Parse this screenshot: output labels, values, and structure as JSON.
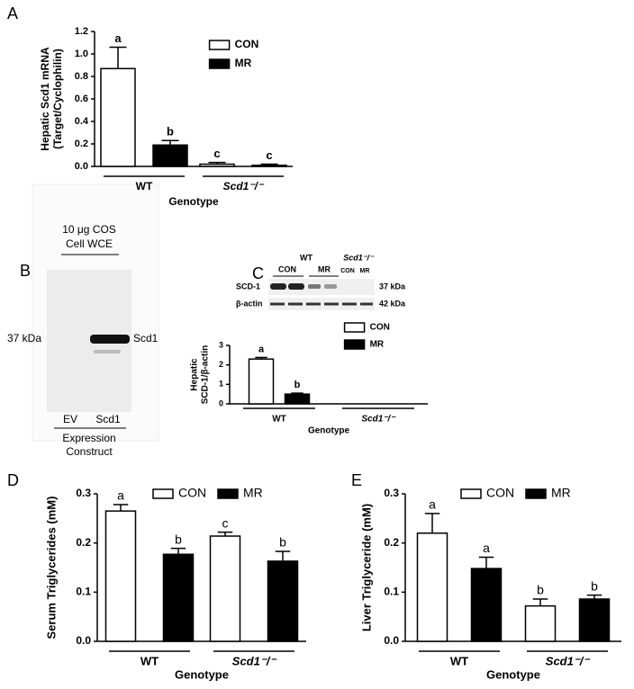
{
  "chart_data": [
    {
      "type": "bar",
      "panel": "A",
      "ylabel": [
        "Hepatic Scd1 mRNA",
        "(Target/Cyclophilin)"
      ],
      "xlabel": "Genotype",
      "categories": [
        "WT",
        "Scd1⁻/⁻"
      ],
      "series": [
        {
          "name": "CON",
          "color": "#ffffff",
          "values": [
            0.87,
            0.02
          ],
          "errors": [
            0.19,
            0.015
          ],
          "letters": [
            "a",
            "c"
          ]
        },
        {
          "name": "MR",
          "color": "#000000",
          "values": [
            0.19,
            0.01
          ],
          "errors": [
            0.04,
            0.01
          ],
          "letters": [
            "b",
            "c"
          ]
        }
      ],
      "ylim": [
        0,
        1.2
      ],
      "yticks": [
        {
          "value": 0,
          "label": "0.0"
        },
        0.2,
        0.4,
        0.6,
        0.8,
        {
          "value": 1,
          "label": "1.0"
        },
        1.2
      ],
      "legend": "upper right"
    },
    {
      "type": "bar",
      "panel": "C",
      "ylabel": [
        "Hepatic",
        "SCD-1/β-actin"
      ],
      "xlabel": "Genotype",
      "categories": [
        "WT",
        "Scd1⁻/⁻"
      ],
      "series": [
        {
          "name": "CON",
          "color": "#ffffff",
          "values": [
            2.3,
            null
          ],
          "errors": [
            0.08,
            null
          ],
          "letters": [
            "a",
            null
          ]
        },
        {
          "name": "MR",
          "color": "#000000",
          "values": [
            0.5,
            null
          ],
          "errors": [
            0.05,
            null
          ],
          "letters": [
            "b",
            null
          ]
        }
      ],
      "ylim": [
        0,
        3
      ],
      "yticks": [
        0,
        1,
        2,
        3
      ],
      "legend": "upper right"
    },
    {
      "type": "bar",
      "panel": "D",
      "ylabel": [
        "Serum Triglycerides (mM)"
      ],
      "xlabel": "Genotype",
      "categories": [
        "WT",
        "Scd1⁻/⁻"
      ],
      "series": [
        {
          "name": "CON",
          "color": "#ffffff",
          "values": [
            0.265,
            0.214
          ],
          "errors": [
            0.013,
            0.008
          ],
          "letters": [
            "a",
            "c"
          ]
        },
        {
          "name": "MR",
          "color": "#000000",
          "values": [
            0.177,
            0.163
          ],
          "errors": [
            0.012,
            0.02
          ],
          "letters": [
            "b",
            "b"
          ]
        }
      ],
      "ylim": [
        0,
        0.3
      ],
      "yticks": [
        {
          "value": 0,
          "label": "0.0"
        },
        0.1,
        0.2,
        0.3
      ],
      "legend": "top"
    },
    {
      "type": "bar",
      "panel": "E",
      "ylabel": [
        "Liver Triglyceride (mM)"
      ],
      "xlabel": "Genotype",
      "categories": [
        "WT",
        "Scd1⁻/⁻"
      ],
      "series": [
        {
          "name": "CON",
          "color": "#ffffff",
          "values": [
            0.22,
            0.072
          ],
          "errors": [
            0.04,
            0.014
          ],
          "letters": [
            "a",
            "b"
          ]
        },
        {
          "name": "MR",
          "color": "#000000",
          "values": [
            0.148,
            0.086
          ],
          "errors": [
            0.023,
            0.008
          ],
          "letters": [
            "a",
            "b"
          ]
        }
      ],
      "ylim": [
        0,
        0.3
      ],
      "yticks": [
        {
          "value": 0,
          "label": "0.0"
        },
        0.1,
        0.2,
        0.3
      ],
      "legend": "top"
    }
  ],
  "blot_b": {
    "panel": "B",
    "header": [
      "10 μg COS",
      "Cell WCE"
    ],
    "marker": "37 kDa",
    "band": "Scd1",
    "lanes": [
      "EV",
      "Scd1"
    ],
    "footer": [
      "Expression",
      "Construct"
    ]
  },
  "blot_c": {
    "groups": [
      "WT",
      "Scd1⁻/⁻"
    ],
    "lanes": [
      "CON",
      "MR",
      "CON",
      "MR"
    ],
    "rows": [
      "SCD-1",
      "β-actin"
    ],
    "sizes": [
      "37 kDa",
      "42 kDa"
    ]
  }
}
